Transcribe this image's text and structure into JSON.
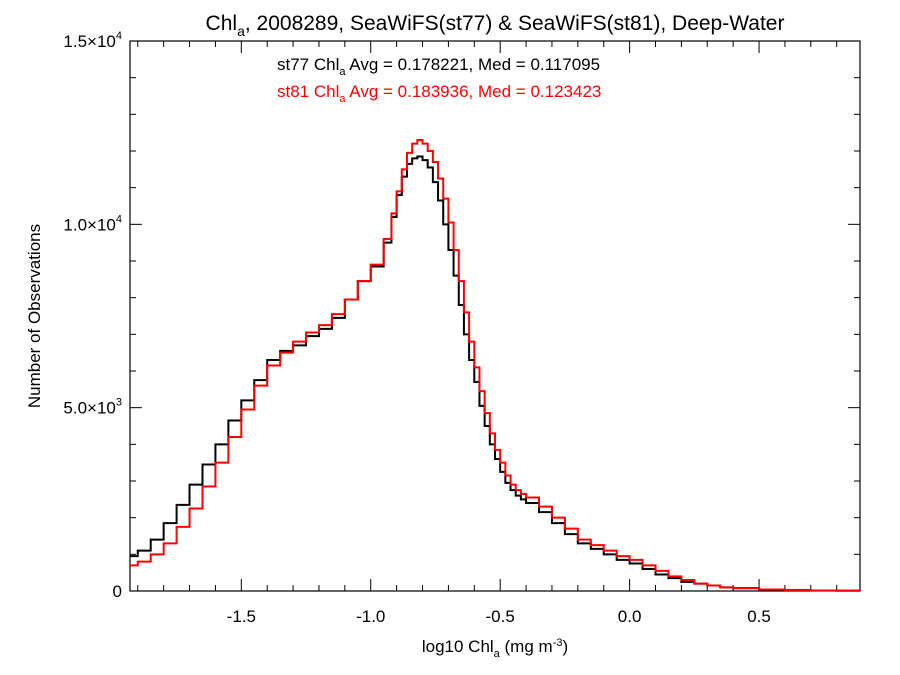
{
  "chart_data": {
    "type": "line",
    "step": true,
    "title": {
      "main": "Chl",
      "sub": "a",
      "rest": ", 2008289, SeaWiFS(st77) & SeaWiFS(st81), Deep-Water"
    },
    "xlabel": {
      "main": "log10 Chl",
      "sub": "a",
      "rest": " (mg m",
      "sup": "-3",
      "end": ")"
    },
    "ylabel": "Number of Observations",
    "xlim": [
      -1.93,
      0.89
    ],
    "ylim": [
      0,
      15000
    ],
    "x_ticks": [
      {
        "value": -1.5,
        "label": "-1.5"
      },
      {
        "value": -1.0,
        "label": "-1.0"
      },
      {
        "value": -0.5,
        "label": "-0.5"
      },
      {
        "value": 0.0,
        "label": "0.0"
      },
      {
        "value": 0.5,
        "label": "0.5"
      }
    ],
    "y_ticks": [
      {
        "value": 0,
        "mantissa": "0",
        "times": "",
        "base": "",
        "exp": ""
      },
      {
        "value": 5000,
        "mantissa": "5.0",
        "times": "×",
        "base": "10",
        "exp": "3"
      },
      {
        "value": 10000,
        "mantissa": "1.0",
        "times": "×",
        "base": "10",
        "exp": "4"
      },
      {
        "value": 15000,
        "mantissa": "1.5",
        "times": "×",
        "base": "10",
        "exp": "4"
      }
    ],
    "annotations": [
      {
        "series": "st77",
        "color": "#000000",
        "prefix": "st77 Chl",
        "sub": "a",
        "suffix": " Avg = 0.178221, Med = 0.117095"
      },
      {
        "series": "st81",
        "color": "#ff0000",
        "prefix": "st81 Chl",
        "sub": "a",
        "suffix": " Avg = 0.183936, Med = 0.123423"
      }
    ],
    "series": [
      {
        "name": "st77",
        "color": "#000000",
        "x": [
          -1.93,
          -1.9,
          -1.85,
          -1.8,
          -1.75,
          -1.7,
          -1.65,
          -1.6,
          -1.55,
          -1.5,
          -1.45,
          -1.4,
          -1.35,
          -1.3,
          -1.25,
          -1.2,
          -1.15,
          -1.1,
          -1.05,
          -1.0,
          -0.95,
          -0.92,
          -0.9,
          -0.88,
          -0.86,
          -0.84,
          -0.82,
          -0.8,
          -0.78,
          -0.76,
          -0.74,
          -0.72,
          -0.7,
          -0.68,
          -0.66,
          -0.64,
          -0.62,
          -0.6,
          -0.58,
          -0.56,
          -0.54,
          -0.52,
          -0.5,
          -0.48,
          -0.46,
          -0.44,
          -0.42,
          -0.4,
          -0.35,
          -0.3,
          -0.25,
          -0.2,
          -0.15,
          -0.1,
          -0.05,
          0.0,
          0.05,
          0.1,
          0.15,
          0.2,
          0.25,
          0.3,
          0.35,
          0.4,
          0.5,
          0.6,
          0.7,
          0.8,
          0.89
        ],
        "y": [
          950,
          1100,
          1400,
          1850,
          2350,
          2900,
          3450,
          4000,
          4650,
          5200,
          5750,
          6300,
          6550,
          6700,
          6950,
          7150,
          7450,
          7950,
          8450,
          8850,
          9500,
          10200,
          10800,
          11300,
          11650,
          11800,
          11850,
          11750,
          11550,
          11150,
          10650,
          10000,
          9300,
          8600,
          7800,
          7000,
          6300,
          5700,
          5050,
          4500,
          4000,
          3600,
          3250,
          2950,
          2750,
          2600,
          2500,
          2400,
          2150,
          1850,
          1550,
          1300,
          1150,
          1000,
          850,
          750,
          600,
          450,
          350,
          250,
          200,
          150,
          100,
          80,
          40,
          25,
          15,
          10,
          5
        ]
      },
      {
        "name": "st81",
        "color": "#ff0000",
        "x": [
          -1.93,
          -1.9,
          -1.85,
          -1.8,
          -1.75,
          -1.7,
          -1.65,
          -1.6,
          -1.55,
          -1.5,
          -1.45,
          -1.4,
          -1.35,
          -1.3,
          -1.25,
          -1.2,
          -1.15,
          -1.1,
          -1.05,
          -1.0,
          -0.95,
          -0.92,
          -0.9,
          -0.88,
          -0.86,
          -0.84,
          -0.82,
          -0.8,
          -0.78,
          -0.76,
          -0.74,
          -0.72,
          -0.7,
          -0.68,
          -0.66,
          -0.64,
          -0.62,
          -0.6,
          -0.58,
          -0.56,
          -0.54,
          -0.52,
          -0.5,
          -0.48,
          -0.46,
          -0.44,
          -0.42,
          -0.4,
          -0.35,
          -0.3,
          -0.25,
          -0.2,
          -0.15,
          -0.1,
          -0.05,
          0.0,
          0.05,
          0.1,
          0.15,
          0.2,
          0.25,
          0.3,
          0.35,
          0.4,
          0.5,
          0.6,
          0.7,
          0.8,
          0.89
        ],
        "y": [
          700,
          800,
          1000,
          1300,
          1750,
          2250,
          2850,
          3500,
          4200,
          4950,
          5600,
          6150,
          6500,
          6800,
          7050,
          7250,
          7550,
          7950,
          8450,
          8900,
          9600,
          10300,
          10900,
          11500,
          11950,
          12200,
          12300,
          12200,
          12000,
          11700,
          11250,
          10700,
          10050,
          9300,
          8450,
          7600,
          6800,
          6100,
          5450,
          4850,
          4300,
          3850,
          3500,
          3150,
          2900,
          2750,
          2650,
          2550,
          2300,
          2000,
          1700,
          1400,
          1250,
          1100,
          950,
          850,
          700,
          550,
          400,
          300,
          200,
          150,
          100,
          80,
          40,
          25,
          15,
          10,
          5
        ]
      }
    ]
  }
}
